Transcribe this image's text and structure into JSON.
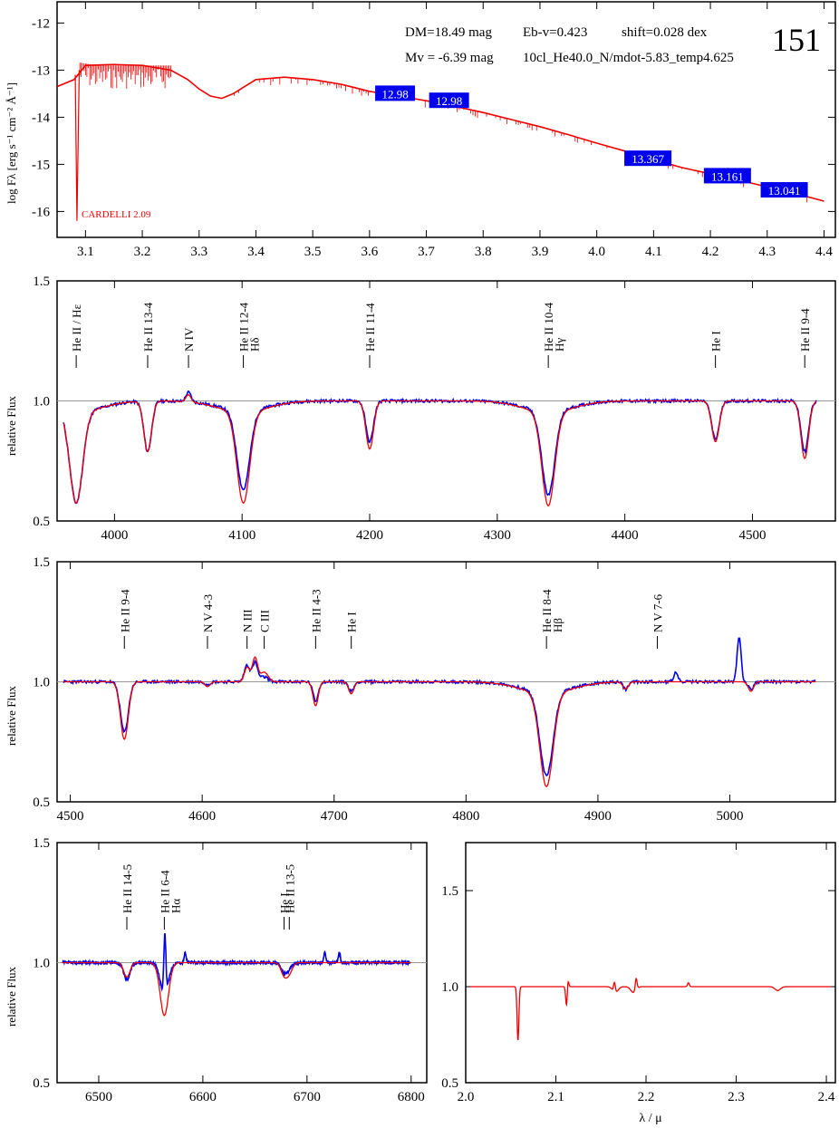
{
  "chart_data": [
    {
      "type": "line",
      "panel": "sed",
      "ylabel": "log Fλ [erg s⁻¹ cm⁻² Å⁻¹]",
      "xlim": [
        3.05,
        4.42
      ],
      "ylim": [
        -16.55,
        -11.55
      ],
      "xticks": [
        "3.1",
        "3.2",
        "3.3",
        "3.4",
        "3.5",
        "3.6",
        "3.7",
        "3.8",
        "3.9",
        "4.0",
        "4.1",
        "4.2",
        "4.3",
        "4.4"
      ],
      "xtick_values": [
        3.1,
        3.2,
        3.3,
        3.4,
        3.5,
        3.6,
        3.7,
        3.8,
        3.9,
        4.0,
        4.1,
        4.2,
        4.3,
        4.4
      ],
      "yticks": [
        "-12",
        "-13",
        "-14",
        "-15",
        "-16"
      ],
      "ytick_values": [
        -12,
        -13,
        -14,
        -15,
        -16
      ],
      "info_line1": "DM=18.49 mag",
      "info_line2": "Eb-v=0.423",
      "info_line3": "shift=0.028 dex",
      "info_line4": "Mv = -6.39 mag",
      "info_line5": "10cl_He40.0_N/mdot-5.83_temp4.625",
      "star_id": "151",
      "reddening_label": "CARDELLI 2.09",
      "model_x": [
        3.05,
        3.08,
        3.1,
        3.15,
        3.2,
        3.25,
        3.28,
        3.3,
        3.32,
        3.34,
        3.36,
        3.38,
        3.4,
        3.45,
        3.5,
        3.55,
        3.6,
        3.65,
        3.7,
        3.75,
        3.8,
        3.85,
        3.9,
        3.95,
        4.0,
        4.05,
        4.1,
        4.15,
        4.2,
        4.25,
        4.3,
        4.35,
        4.4
      ],
      "model_y": [
        -13.35,
        -13.2,
        -12.9,
        -12.88,
        -12.9,
        -13.0,
        -13.2,
        -13.4,
        -13.55,
        -13.6,
        -13.5,
        -13.35,
        -13.2,
        -13.15,
        -13.2,
        -13.3,
        -13.45,
        -13.55,
        -13.65,
        -13.77,
        -13.9,
        -14.05,
        -14.2,
        -14.37,
        -14.55,
        -14.72,
        -14.9,
        -15.07,
        -15.2,
        -15.33,
        -15.48,
        -15.62,
        -15.78
      ],
      "photometry": [
        {
          "label": "12.98",
          "x": 3.645,
          "y": -13.5
        },
        {
          "label": "12.98",
          "x": 3.74,
          "y": -13.65
        },
        {
          "label": "13.367",
          "x": 4.09,
          "y": -14.88
        },
        {
          "label": "13.161",
          "x": 4.23,
          "y": -15.25
        },
        {
          "label": "13.041",
          "x": 4.33,
          "y": -15.55
        }
      ]
    },
    {
      "type": "line",
      "panel": "spec1",
      "ylabel": "relative Flux",
      "xlim": [
        3955,
        4565
      ],
      "ylim": [
        0.5,
        1.5
      ],
      "xticks": [
        "4000",
        "4100",
        "4200",
        "4300",
        "4400",
        "4500"
      ],
      "xtick_values": [
        4000,
        4100,
        4200,
        4300,
        4400,
        4500
      ],
      "yticks": [
        "1.5",
        "1.0",
        "0.5"
      ],
      "ytick_values": [
        1.5,
        1.0,
        0.5
      ],
      "lines": [
        {
          "x": 3970,
          "name": "He II / Hε",
          "depth_model": 0.38,
          "depth_obs": 0.38,
          "width": 5
        },
        {
          "x": 4026,
          "name": "He II 13-4",
          "depth_model": 0.21,
          "depth_obs": 0.21,
          "width": 3
        },
        {
          "x": 4058,
          "name": "N IV",
          "depth_model": -0.03,
          "depth_obs": -0.04,
          "width": 2
        },
        {
          "x": 4101,
          "name": "He II 12-4",
          "name2": "Hδ",
          "depth_model": 0.38,
          "depth_obs": 0.33,
          "width": 5
        },
        {
          "x": 4200,
          "name": "He II 11-4",
          "depth_model": 0.2,
          "depth_obs": 0.17,
          "width": 3
        },
        {
          "x": 4340,
          "name": "He II 10-4",
          "name2": "Hγ",
          "depth_model": 0.39,
          "depth_obs": 0.35,
          "width": 5
        },
        {
          "x": 4471,
          "name": "He I",
          "depth_model": 0.17,
          "depth_obs": 0.16,
          "width": 3
        },
        {
          "x": 4541,
          "name": "He II 9-4",
          "depth_model": 0.24,
          "depth_obs": 0.21,
          "width": 3
        }
      ]
    },
    {
      "type": "line",
      "panel": "spec2",
      "ylabel": "relative Flux",
      "xlim": [
        4490,
        5080
      ],
      "ylim": [
        0.5,
        1.5
      ],
      "xticks": [
        "4500",
        "4600",
        "4700",
        "4800",
        "4900",
        "5000"
      ],
      "xtick_values": [
        4500,
        4600,
        4700,
        4800,
        4900,
        5000
      ],
      "yticks": [
        "1.5",
        "1.0",
        "0.5"
      ],
      "ytick_values": [
        1.5,
        1.0,
        0.5
      ],
      "lines": [
        {
          "x": 4541,
          "name": "He II 9-4",
          "depth_model": 0.24,
          "depth_obs": 0.21,
          "width": 3
        },
        {
          "x": 4604,
          "name": "N V 4-3",
          "depth_model": 0.02,
          "depth_obs": 0.01,
          "width": 2
        },
        {
          "x": 4634,
          "name": "N III",
          "depth_model": -0.06,
          "depth_obs": -0.07,
          "width": 2
        },
        {
          "x": 4647,
          "name": "C III",
          "depth_model": -0.04,
          "depth_obs": -0.02,
          "width": 3
        },
        {
          "x": 4640,
          "name": "",
          "depth_model": -0.1,
          "depth_obs": -0.08,
          "width": 2
        },
        {
          "x": 4686,
          "name": "He II 4-3",
          "depth_model": 0.1,
          "depth_obs": 0.08,
          "width": 2
        },
        {
          "x": 4713,
          "name": "He I",
          "depth_model": 0.05,
          "depth_obs": 0.04,
          "width": 2
        },
        {
          "x": 4861,
          "name": "He II 8-4",
          "name2": "Hβ",
          "depth_model": 0.39,
          "depth_obs": 0.35,
          "width": 5
        },
        {
          "x": 4921,
          "name": "",
          "depth_model": 0.03,
          "depth_obs": 0.03,
          "width": 2
        },
        {
          "x": 4945,
          "name": "N V 7-6",
          "depth_model": 0.0,
          "depth_obs": 0.0,
          "width": 2
        },
        {
          "x": 4959,
          "name": "",
          "depth_model": 0.0,
          "depth_obs": -0.04,
          "width": 1.5
        },
        {
          "x": 5007,
          "name": "",
          "depth_model": 0.0,
          "depth_obs": -0.19,
          "width": 1.5
        },
        {
          "x": 5016,
          "name": "",
          "depth_model": 0.04,
          "depth_obs": 0.03,
          "width": 2
        }
      ]
    },
    {
      "type": "line",
      "panel": "spec3",
      "ylabel": "relative Flux",
      "xlim": [
        6460,
        6815
      ],
      "ylim": [
        0.5,
        1.5
      ],
      "xticks": [
        "6500",
        "6600",
        "6700",
        "6800"
      ],
      "xtick_values": [
        6500,
        6600,
        6700,
        6800
      ],
      "yticks": [
        "1.5",
        "1.0",
        "0.5"
      ],
      "ytick_values": [
        1.5,
        1.0,
        0.5
      ],
      "lines": [
        {
          "x": 6527,
          "name": "He II 14-5",
          "depth_model": 0.06,
          "depth_obs": 0.07,
          "width": 3
        },
        {
          "x": 6563,
          "name": "He II 6-4",
          "name2": "Hα",
          "depth_model": 0.22,
          "depth_obs": 0.13,
          "width": 4
        },
        {
          "x": 6563.5,
          "name": "",
          "depth_model": 0.0,
          "depth_obs": -0.25,
          "width": 1
        },
        {
          "x": 6583,
          "name": "",
          "depth_model": 0.0,
          "depth_obs": -0.04,
          "width": 1
        },
        {
          "x": 6678,
          "name": "He I",
          "depth_model": 0.05,
          "depth_obs": 0.04,
          "width": 3
        },
        {
          "x": 6683,
          "name": "He II 13-5",
          "depth_model": 0.04,
          "depth_obs": 0.02,
          "width": 3
        },
        {
          "x": 6717,
          "name": "",
          "depth_model": 0.0,
          "depth_obs": -0.04,
          "width": 1
        },
        {
          "x": 6731,
          "name": "",
          "depth_model": 0.0,
          "depth_obs": -0.04,
          "width": 1
        }
      ]
    },
    {
      "type": "line",
      "panel": "ir",
      "xlabel": "λ / μ",
      "xlim": [
        2.0,
        2.41
      ],
      "ylim": [
        0.5,
        1.75
      ],
      "xticks": [
        "2.0",
        "2.1",
        "2.2",
        "2.3",
        "2.4"
      ],
      "xtick_values": [
        2.0,
        2.1,
        2.2,
        2.3,
        2.4
      ],
      "yticks": [
        "1.5",
        "1.0",
        "0.5"
      ],
      "ytick_values": [
        1.5,
        1.0,
        0.5
      ],
      "features": [
        {
          "x": 2.058,
          "depth": 0.28,
          "width": 0.001
        },
        {
          "x": 2.112,
          "depth": 0.13,
          "width": 0.001
        },
        {
          "x": 2.113,
          "depth": -0.07,
          "width": 0.001
        },
        {
          "x": 2.166,
          "depth": 0.03,
          "width": 0.003
        },
        {
          "x": 2.165,
          "depth": -0.05,
          "width": 0.001
        },
        {
          "x": 2.186,
          "depth": 0.03,
          "width": 0.003
        },
        {
          "x": 2.189,
          "depth": -0.06,
          "width": 0.001
        },
        {
          "x": 2.247,
          "depth": -0.02,
          "width": 0.001
        },
        {
          "x": 2.346,
          "depth": 0.02,
          "width": 0.003
        }
      ]
    }
  ],
  "colors": {
    "model": "#ee0000",
    "observed": "#0000ee",
    "photometry_box": "#0000ee",
    "photometry_text": "#ffffff",
    "axis": "#000000",
    "continuum": "#999999"
  }
}
